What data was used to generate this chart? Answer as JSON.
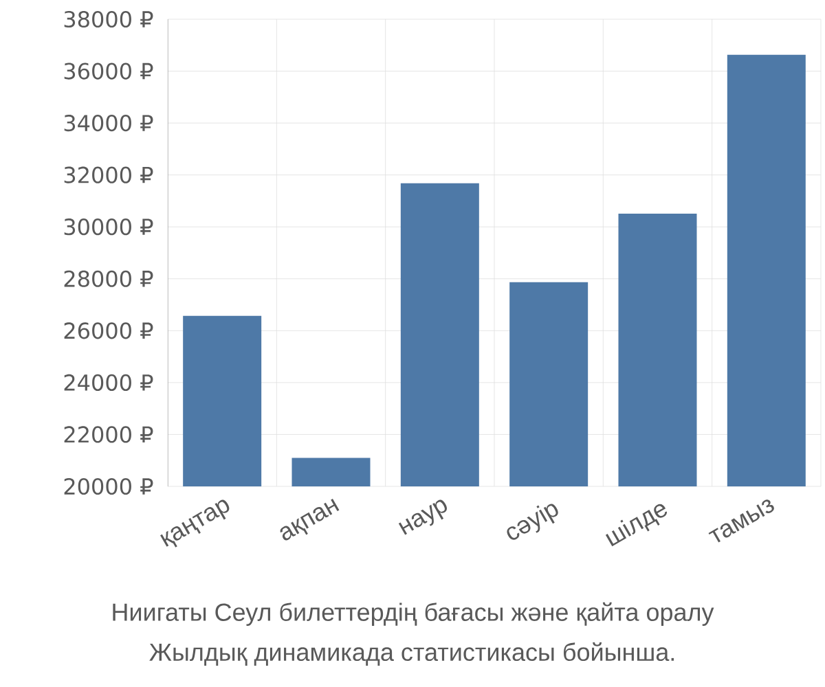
{
  "chart_data": {
    "type": "bar",
    "title": "Ниигаты Сеул билеттердің бағасы және қайта оралу",
    "subtitle": "Жылдық динамикада статистикасы бойынша.",
    "categories": [
      "қаңтар",
      "ақпан",
      "наур",
      "сәуір",
      "шілде",
      "тамыз"
    ],
    "values": [
      26570,
      21100,
      31680,
      27870,
      30510,
      36630
    ],
    "color": "#4e79a7",
    "ylim": [
      20000,
      38000
    ],
    "yticks": [
      {
        "value": 20000,
        "label": "20000 ₽"
      },
      {
        "value": 22000,
        "label": "22000 ₽"
      },
      {
        "value": 24000,
        "label": "24000 ₽"
      },
      {
        "value": 26000,
        "label": "26000 ₽"
      },
      {
        "value": 28000,
        "label": "28000 ₽"
      },
      {
        "value": 30000,
        "label": "30000 ₽"
      },
      {
        "value": 32000,
        "label": "32000 ₽"
      },
      {
        "value": 34000,
        "label": "34000 ₽"
      },
      {
        "value": 36000,
        "label": "36000 ₽"
      },
      {
        "value": 38000,
        "label": "38000 ₽"
      }
    ],
    "grid": true
  }
}
